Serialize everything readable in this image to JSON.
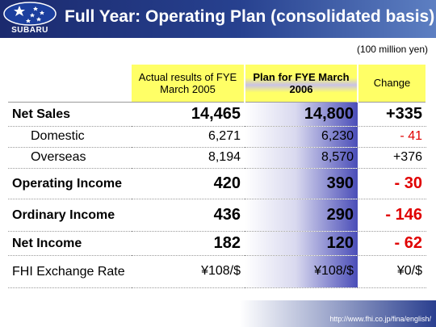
{
  "header": {
    "logo_text": "SUBARU",
    "title": "Full Year: Operating Plan (consolidated basis)"
  },
  "unit": "(100 million yen)",
  "table": {
    "columns": [
      "Actual results of FYE March 2005",
      "Plan for FYE March 2006",
      "Change"
    ],
    "rows": [
      {
        "label": "Net Sales",
        "actual": "14,465",
        "plan": "14,800",
        "change": "+335"
      },
      {
        "label": "Domestic",
        "actual": "6,271",
        "plan": "6,230",
        "change": "- 41"
      },
      {
        "label": "Overseas",
        "actual": "8,194",
        "plan": "8,570",
        "change": "+376"
      },
      {
        "label": "Operating Income",
        "actual": "420",
        "plan": "390",
        "change": "- 30"
      },
      {
        "label": "Ordinary Income",
        "actual": "436",
        "plan": "290",
        "change": "- 146"
      },
      {
        "label": "Net Income",
        "actual": "182",
        "plan": "120",
        "change": "- 62"
      },
      {
        "label": "FHI Exchange Rate",
        "actual": "¥108/$",
        "plan": "¥108/$",
        "change": "¥0/$"
      }
    ]
  },
  "footer": {
    "url": "http://www.fhi.co.jp/fina/english/"
  },
  "colors": {
    "header_bg": "#27418f",
    "column_header_bg": "#ffff66",
    "negative": "#e00000"
  }
}
